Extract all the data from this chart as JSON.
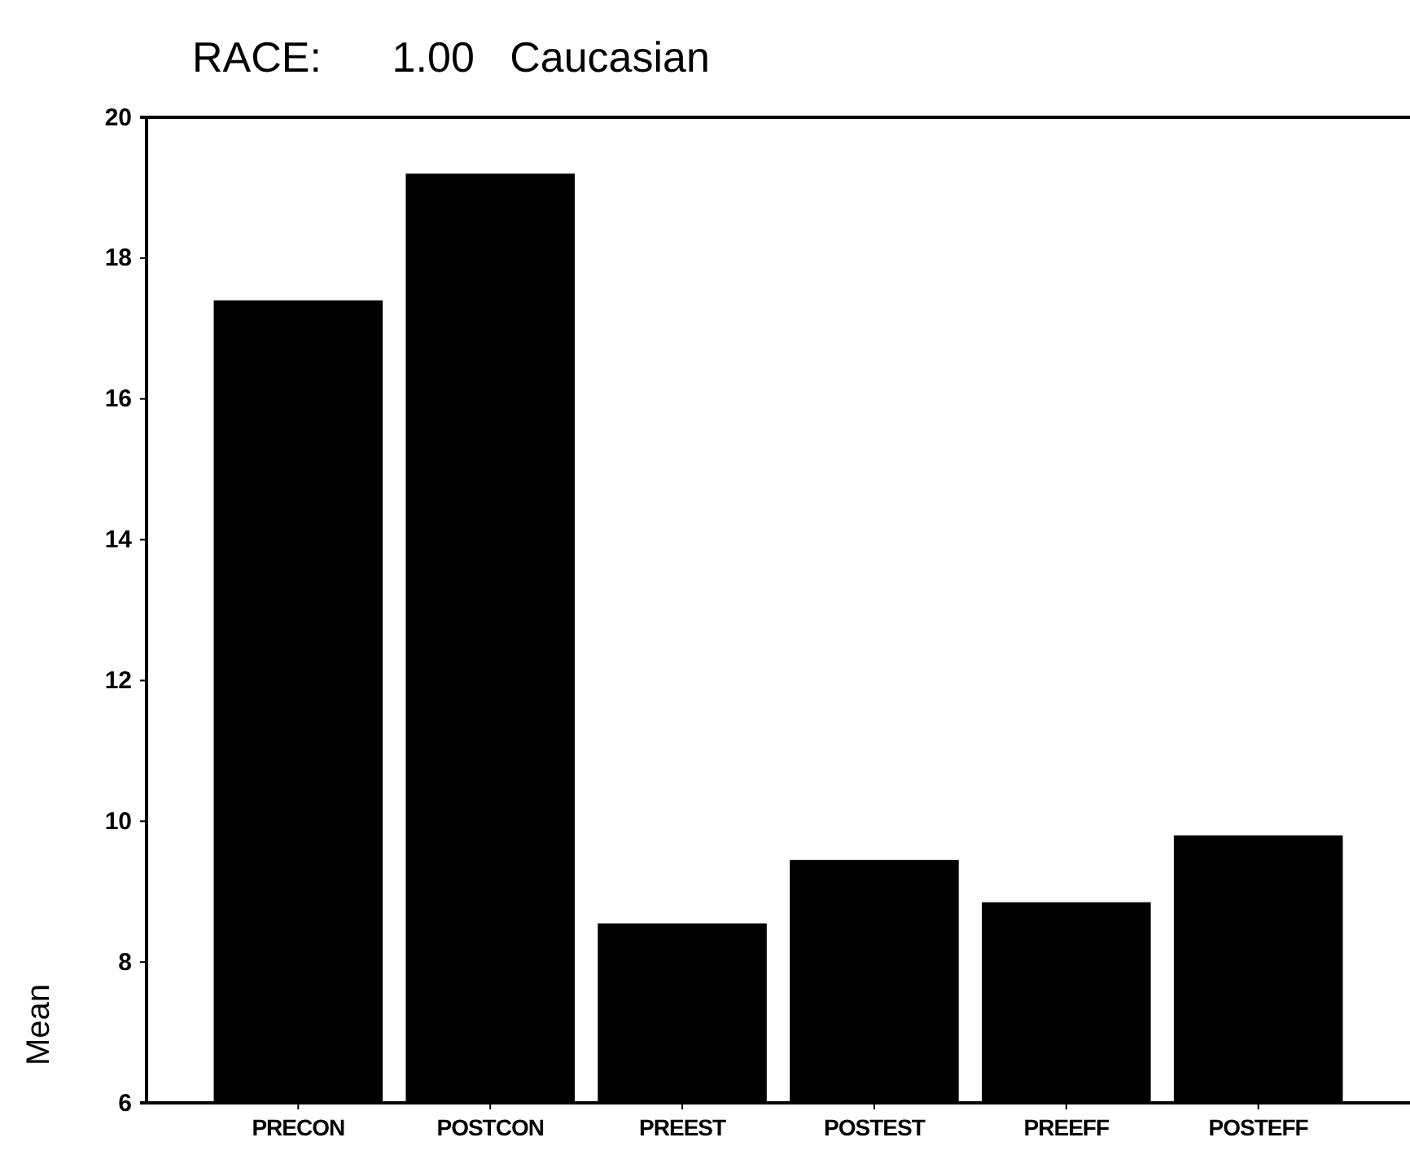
{
  "chart_data": {
    "type": "bar",
    "title": "RACE:      1.00   Caucasian",
    "ylabel": "Mean",
    "categories": [
      "PRECON",
      "POSTCON",
      "PREEST",
      "POSTEST",
      "PREEFF",
      "POSTEFF"
    ],
    "values": [
      17.4,
      19.2,
      8.55,
      9.45,
      8.85,
      9.8
    ],
    "color": "#000000",
    "ylim": [
      6,
      20
    ],
    "yticks": [
      6,
      8,
      10,
      12,
      14,
      16,
      18,
      20
    ],
    "grid": false
  }
}
